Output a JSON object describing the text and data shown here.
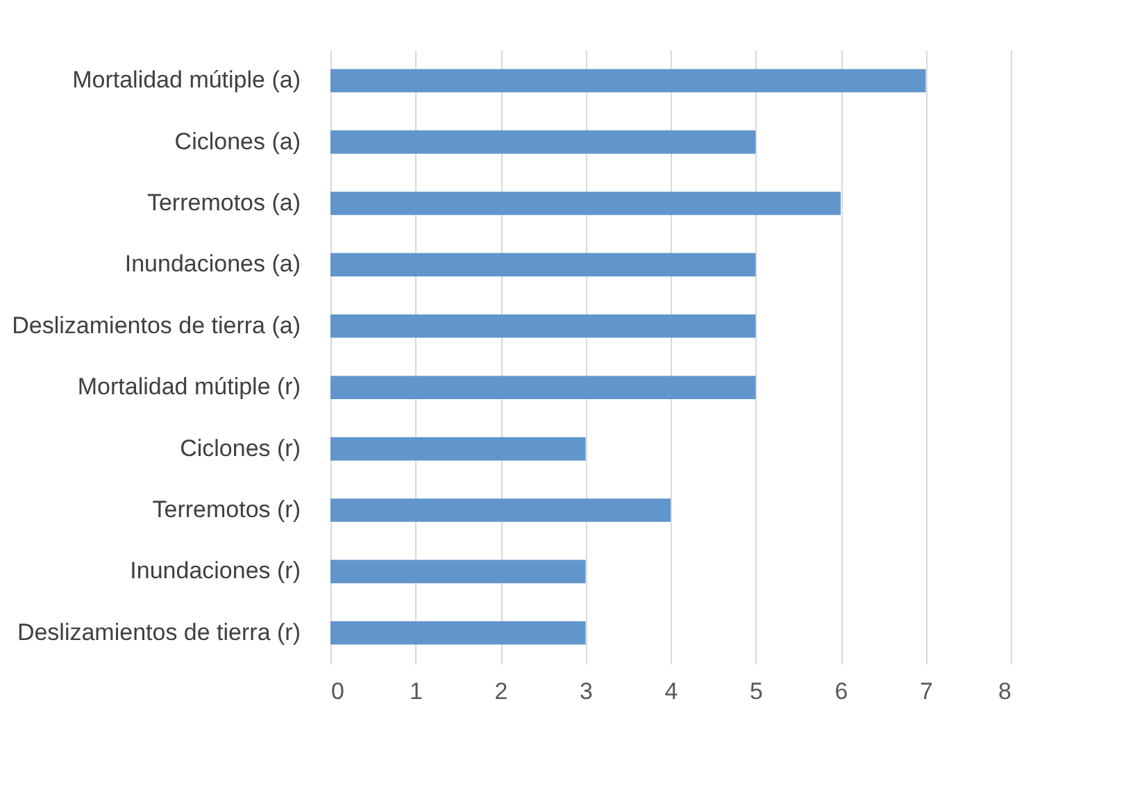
{
  "chart_data": {
    "type": "bar",
    "orientation": "horizontal",
    "categories": [
      "Mortalidad mútiple (a)",
      "Ciclones (a)",
      "Terremotos (a)",
      "Inundaciones (a)",
      "Deslizamientos de tierra (a)",
      "Mortalidad mútiple (r)",
      "Ciclones (r)",
      "Terremotos (r)",
      "Inundaciones (r)",
      "Deslizamientos de tierra (r)"
    ],
    "values": [
      7,
      5,
      6,
      5,
      5,
      5,
      3,
      4,
      3,
      3
    ],
    "color": "#6096cb",
    "xlim": [
      0,
      8
    ],
    "xticks": [
      0,
      1,
      2,
      3,
      4,
      5,
      6,
      7,
      8
    ],
    "grid": "x"
  }
}
